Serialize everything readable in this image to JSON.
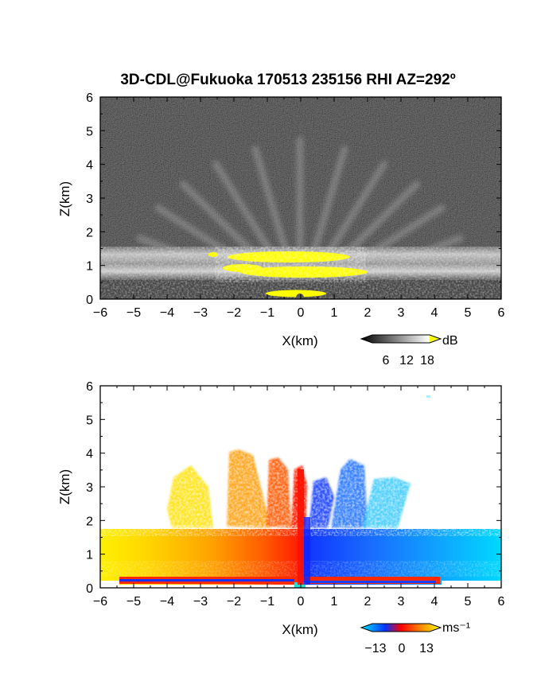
{
  "title": "3D-CDL@Fukuoka 170513 235156 RHI AZ=292º",
  "chart_data": [
    {
      "type": "heatmap",
      "quantity": "backscatter intensity",
      "xlabel": "X(km)",
      "ylabel": "Z(km)",
      "xlim": [
        -6,
        6
      ],
      "ylim": [
        0,
        6
      ],
      "xticks": [
        "−6",
        "−5",
        "−4",
        "−3",
        "−2",
        "−1",
        "0",
        "1",
        "2",
        "3",
        "4",
        "5",
        "6"
      ],
      "yticks": [
        "0",
        "1",
        "2",
        "3",
        "4",
        "5",
        "6"
      ],
      "colorbar": {
        "unit": "dB",
        "ticks": [
          "6",
          "12",
          "18"
        ],
        "range": [
          0,
          20
        ],
        "colors": [
          "#000000",
          "#ffffff",
          "#ffff00"
        ]
      },
      "colormap": "grayscale with yellow saturation",
      "features": {
        "background": "dark noise above ~1.6 km",
        "boundary_layer_band_km": [
          0.3,
          1.6
        ],
        "saturated_region": {
          "x_range_km": [
            -2.7,
            2.0
          ],
          "z_range_km": [
            0.7,
            1.45
          ],
          "value_db": 18
        },
        "near_ground_peak": {
          "x_range_km": [
            -1.0,
            0.8
          ],
          "z_range_km": [
            0.0,
            0.2
          ]
        }
      }
    },
    {
      "type": "heatmap",
      "quantity": "radial velocity",
      "xlabel": "X(km)",
      "ylabel": "Z(km)",
      "xlim": [
        -6,
        6
      ],
      "ylim": [
        0,
        6
      ],
      "xticks": [
        "−6",
        "−5",
        "−4",
        "−3",
        "−2",
        "−1",
        "0",
        "1",
        "2",
        "3",
        "4",
        "5",
        "6"
      ],
      "yticks": [
        "0",
        "1",
        "2",
        "3",
        "4",
        "5",
        "6"
      ],
      "colorbar": {
        "unit": "ms⁻¹",
        "ticks": [
          "−13",
          "0",
          "13"
        ],
        "range": [
          -13,
          13
        ],
        "colors": [
          "#00e5ff",
          "#0033ff",
          "#ff0000",
          "#ff8800",
          "#ffff00"
        ]
      },
      "colormap": "cyan-blue-red-orange-yellow diverging",
      "features": {
        "negative_side": "x < 0, velocities 0 to +13 (red to yellow)",
        "positive_side": "x > 0, velocities 0 to −13 (blue to cyan)",
        "data_coverage_top_km": 1.6,
        "plume_top_km": 4.0
      }
    }
  ]
}
